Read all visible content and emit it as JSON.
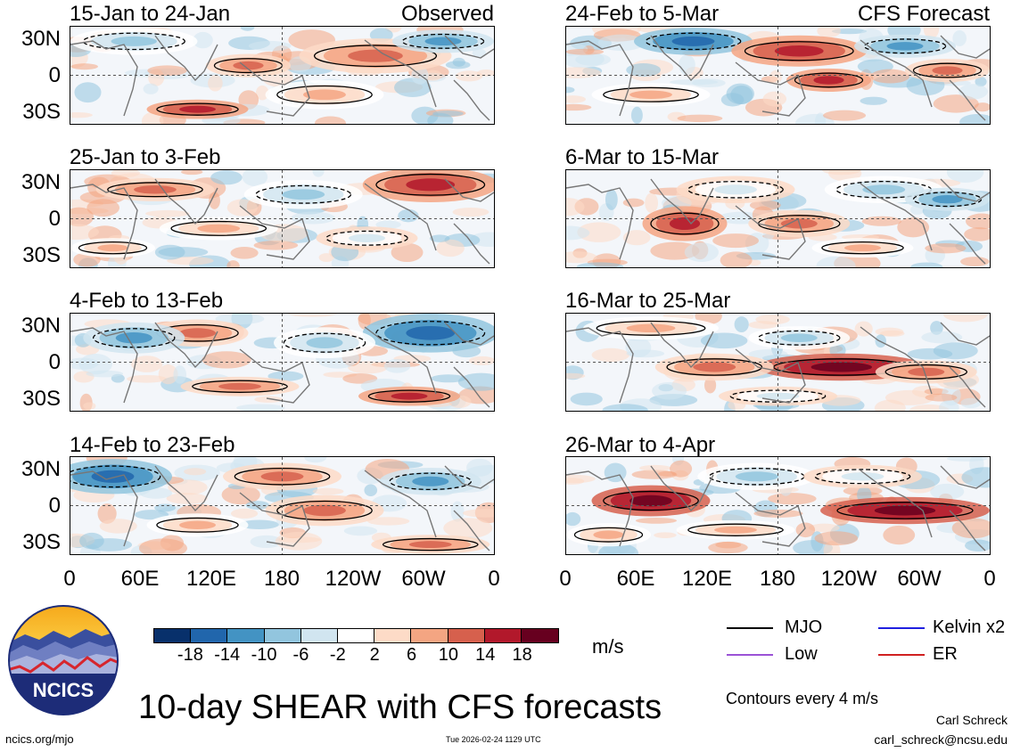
{
  "colors": {
    "scale": [
      "#08306b",
      "#2166ac",
      "#4393c3",
      "#92c5de",
      "#d1e5f0",
      "#ffffff",
      "#fddbc7",
      "#f4a582",
      "#d6604d",
      "#b2182b",
      "#67001f"
    ],
    "mjo": "#000000",
    "kelvin": "#1f1fe0",
    "low": "#9b52d6",
    "er": "#d02020",
    "coast": "#777777"
  },
  "chart_data": {
    "type": "heatmap",
    "title": "10-day SHEAR with CFS forecasts",
    "x_tick_labels": [
      "0",
      "60E",
      "120E",
      "180",
      "120W",
      "60W",
      "0"
    ],
    "y_tick_labels": [
      "30N",
      "0",
      "30S"
    ],
    "observed_label": "Observed",
    "forecast_label": "CFS Forecast",
    "panels_left": [
      {
        "period": "15-Jan to 24-Jan",
        "source": "Observed"
      },
      {
        "period": "25-Jan to 3-Feb",
        "source": "Observed"
      },
      {
        "period": "4-Feb to 13-Feb",
        "source": "Observed"
      },
      {
        "period": "14-Feb to 23-Feb",
        "source": "Observed"
      }
    ],
    "panels_right": [
      {
        "period": "24-Feb to 5-Mar",
        "source": "CFS Forecast"
      },
      {
        "period": "6-Mar to 15-Mar",
        "source": "CFS Forecast"
      },
      {
        "period": "16-Mar to 25-Mar",
        "source": "CFS Forecast"
      },
      {
        "period": "26-Mar to 4-Apr",
        "source": "CFS Forecast"
      }
    ],
    "colorbar": {
      "labels": [
        "-18",
        "-14",
        "-10",
        "-6",
        "-2",
        "2",
        "6",
        "10",
        "14",
        "18"
      ],
      "units": "m/s"
    },
    "legend": {
      "mjo": "MJO",
      "low": "Low",
      "kelvin": "Kelvin x2",
      "er": "ER"
    },
    "contour_note": "Contours every 4 m/s"
  },
  "footer": {
    "logo_text": "NCICS",
    "url": "ncics.org/mjo",
    "timestamp": "Tue 2026-02-24 1129 UTC",
    "author": "Carl Schreck",
    "email": "carl_schreck@ncsu.edu"
  }
}
